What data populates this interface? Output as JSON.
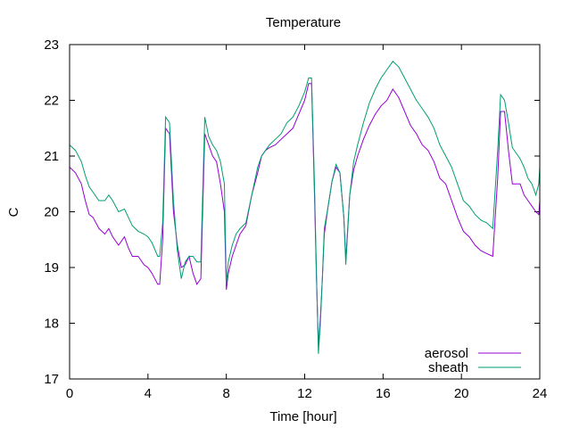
{
  "chart_data": {
    "type": "line",
    "title": "Temperature",
    "xlabel": "Time [hour]",
    "ylabel": "C",
    "xlim": [
      0,
      24
    ],
    "ylim": [
      17,
      23
    ],
    "xticks": [
      "0",
      "4",
      "8",
      "12",
      "16",
      "20",
      "24"
    ],
    "yticks": [
      "17",
      "18",
      "19",
      "20",
      "21",
      "22",
      "23"
    ],
    "grid": false,
    "legend_position": "bottom-right",
    "series": [
      {
        "name": "aerosol",
        "color": "#9400d3",
        "x": [
          0,
          0.3,
          0.6,
          0.8,
          1.0,
          1.2,
          1.5,
          1.8,
          2.0,
          2.2,
          2.5,
          2.8,
          3.0,
          3.2,
          3.5,
          3.8,
          4.0,
          4.2,
          4.5,
          4.6,
          4.75,
          4.9,
          5.1,
          5.3,
          5.5,
          5.7,
          5.9,
          6.1,
          6.3,
          6.5,
          6.7,
          6.9,
          7.1,
          7.3,
          7.5,
          7.7,
          7.9,
          8.0,
          8.1,
          8.3,
          8.5,
          8.7,
          9.0,
          9.3,
          9.6,
          9.8,
          10.0,
          10.2,
          10.5,
          10.8,
          11.1,
          11.4,
          11.7,
          12.0,
          12.2,
          12.35,
          12.5,
          12.6,
          12.7,
          12.8,
          12.9,
          13.0,
          13.2,
          13.4,
          13.6,
          13.8,
          14.0,
          14.1,
          14.3,
          14.5,
          14.7,
          15.0,
          15.3,
          15.6,
          15.9,
          16.2,
          16.5,
          16.8,
          17.1,
          17.4,
          17.7,
          18.0,
          18.3,
          18.6,
          18.9,
          19.2,
          19.5,
          19.8,
          20.1,
          20.4,
          20.7,
          21.0,
          21.3,
          21.6,
          21.85,
          22.0,
          22.2,
          22.4,
          22.6,
          22.8,
          23.0,
          23.2,
          23.4,
          23.6,
          23.8,
          23.95,
          24.0
        ],
        "y": [
          20.8,
          20.7,
          20.5,
          20.2,
          19.95,
          19.9,
          19.7,
          19.6,
          19.7,
          19.55,
          19.4,
          19.55,
          19.35,
          19.2,
          19.2,
          19.05,
          19.0,
          18.9,
          18.7,
          18.7,
          19.5,
          21.5,
          21.4,
          20.0,
          19.4,
          19.0,
          19.05,
          19.2,
          18.9,
          18.7,
          18.8,
          21.4,
          21.2,
          21.0,
          20.9,
          20.5,
          20.0,
          18.6,
          18.9,
          19.2,
          19.4,
          19.6,
          19.75,
          20.3,
          20.7,
          21.0,
          21.1,
          21.15,
          21.2,
          21.3,
          21.4,
          21.5,
          21.75,
          22.0,
          22.3,
          22.3,
          20.3,
          18.8,
          17.6,
          18.1,
          18.8,
          19.6,
          20.1,
          20.55,
          20.8,
          20.7,
          19.9,
          19.15,
          20.3,
          20.75,
          21.0,
          21.3,
          21.55,
          21.75,
          21.9,
          22.0,
          22.2,
          22.05,
          21.8,
          21.55,
          21.4,
          21.2,
          21.1,
          20.9,
          20.6,
          20.5,
          20.2,
          19.9,
          19.65,
          19.55,
          19.4,
          19.3,
          19.25,
          19.2,
          20.6,
          21.8,
          21.8,
          21.1,
          20.5,
          20.5,
          20.5,
          20.3,
          20.2,
          20.1,
          20.0,
          19.95,
          20.2
        ]
      },
      {
        "name": "sheath",
        "color": "#009e73",
        "x": [
          0,
          0.3,
          0.6,
          0.8,
          1.0,
          1.2,
          1.5,
          1.8,
          2.0,
          2.2,
          2.5,
          2.8,
          3.0,
          3.2,
          3.5,
          3.8,
          4.0,
          4.2,
          4.5,
          4.6,
          4.75,
          4.9,
          5.1,
          5.3,
          5.5,
          5.7,
          5.9,
          6.1,
          6.3,
          6.5,
          6.7,
          6.9,
          7.1,
          7.3,
          7.5,
          7.7,
          7.9,
          8.0,
          8.1,
          8.3,
          8.5,
          8.7,
          9.0,
          9.3,
          9.6,
          9.8,
          10.0,
          10.2,
          10.5,
          10.8,
          11.1,
          11.4,
          11.7,
          12.0,
          12.2,
          12.35,
          12.5,
          12.6,
          12.7,
          12.8,
          12.9,
          13.0,
          13.2,
          13.4,
          13.6,
          13.8,
          14.0,
          14.1,
          14.3,
          14.5,
          14.7,
          15.0,
          15.3,
          15.6,
          15.9,
          16.2,
          16.5,
          16.8,
          17.1,
          17.4,
          17.7,
          18.0,
          18.3,
          18.6,
          18.9,
          19.2,
          19.5,
          19.8,
          20.1,
          20.4,
          20.7,
          21.0,
          21.3,
          21.6,
          21.85,
          22.0,
          22.2,
          22.4,
          22.6,
          22.8,
          23.0,
          23.2,
          23.4,
          23.6,
          23.8,
          23.95,
          24.0
        ],
        "y": [
          21.2,
          21.1,
          20.9,
          20.65,
          20.45,
          20.35,
          20.2,
          20.2,
          20.3,
          20.2,
          20.0,
          20.05,
          19.9,
          19.75,
          19.65,
          19.6,
          19.55,
          19.45,
          19.2,
          19.2,
          19.8,
          21.7,
          21.6,
          20.2,
          19.3,
          18.8,
          19.1,
          19.2,
          19.2,
          19.1,
          19.1,
          21.7,
          21.35,
          21.2,
          21.1,
          20.9,
          20.5,
          18.7,
          19.1,
          19.4,
          19.6,
          19.7,
          19.8,
          20.3,
          20.8,
          21.0,
          21.1,
          21.2,
          21.3,
          21.4,
          21.6,
          21.7,
          21.9,
          22.15,
          22.4,
          22.4,
          20.5,
          18.9,
          17.45,
          18.0,
          18.8,
          19.7,
          20.1,
          20.55,
          20.85,
          20.7,
          19.9,
          19.05,
          20.3,
          20.9,
          21.2,
          21.6,
          21.95,
          22.2,
          22.4,
          22.55,
          22.7,
          22.6,
          22.4,
          22.2,
          22.0,
          21.85,
          21.7,
          21.5,
          21.2,
          21.0,
          20.8,
          20.5,
          20.2,
          20.1,
          19.95,
          19.85,
          19.8,
          19.7,
          21.1,
          22.1,
          22.0,
          21.6,
          21.15,
          21.05,
          20.95,
          20.8,
          20.6,
          20.5,
          20.3,
          20.5,
          20.8
        ]
      }
    ]
  }
}
